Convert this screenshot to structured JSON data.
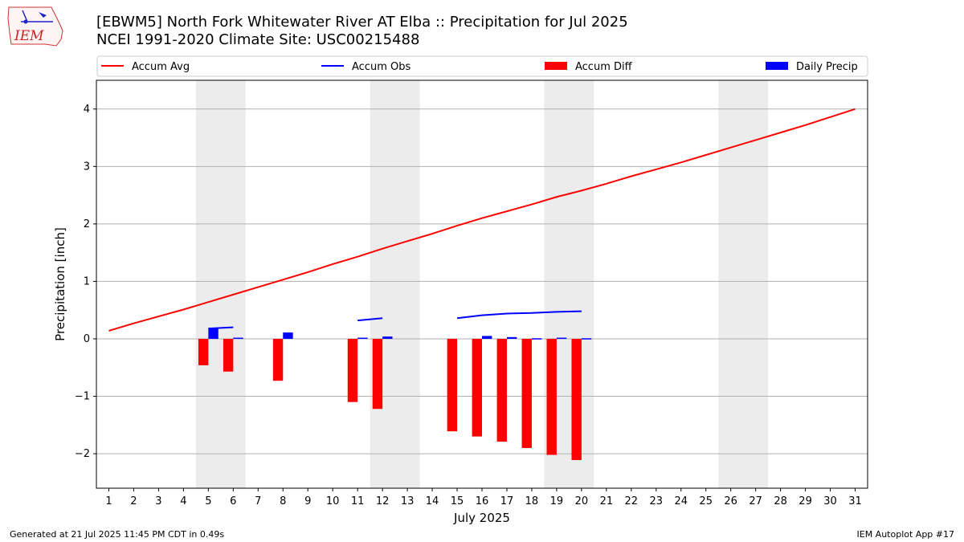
{
  "logo": {
    "text": "IEM"
  },
  "header": {
    "title": "[EBWM5] North Fork Whitewater River  AT Elba :: Precipitation for Jul 2025",
    "subtitle": "NCEI 1991-2020 Climate Site: USC00215488"
  },
  "footer": {
    "left": "Generated at 21 Jul 2025 11:45 PM CDT in 0.49s",
    "right": "IEM Autoplot App #17"
  },
  "colors": {
    "avg": "#ff0000",
    "obs": "#0000ff",
    "diff": "#ff0000",
    "precip": "#0000ff",
    "weekend": "#ececec",
    "grid": "#b0b0b0"
  },
  "chart_data": {
    "type": "bar",
    "xlabel": "July 2025",
    "ylabel": "Precipitation [inch]",
    "xlim": [
      0.5,
      31.5
    ],
    "ylim": [
      -2.6,
      4.5
    ],
    "yticks": [
      -2,
      -1,
      0,
      1,
      2,
      3,
      4
    ],
    "ytick_labels": [
      "−2",
      "−1",
      "0",
      "1",
      "2",
      "3",
      "4"
    ],
    "days": [
      1,
      2,
      3,
      4,
      5,
      6,
      7,
      8,
      9,
      10,
      11,
      12,
      13,
      14,
      15,
      16,
      17,
      18,
      19,
      20,
      21,
      22,
      23,
      24,
      25,
      26,
      27,
      28,
      29,
      30,
      31
    ],
    "grid": "y",
    "legend_position": "top",
    "shaded_weekends": [
      [
        4.5,
        6.5
      ],
      [
        11.5,
        13.5
      ],
      [
        18.5,
        20.5
      ],
      [
        25.5,
        27.5
      ]
    ],
    "legend": [
      "Accum Avg",
      "Accum Obs",
      "Accum Diff",
      "Daily Precip"
    ],
    "accum_avg": {
      "name": "Accum Avg",
      "x": [
        1,
        2,
        3,
        4,
        5,
        6,
        7,
        8,
        9,
        10,
        11,
        12,
        13,
        14,
        15,
        16,
        17,
        18,
        19,
        20,
        21,
        22,
        23,
        24,
        25,
        26,
        27,
        28,
        29,
        30,
        31
      ],
      "y": [
        0.14,
        0.27,
        0.39,
        0.51,
        0.64,
        0.77,
        0.9,
        1.03,
        1.16,
        1.3,
        1.43,
        1.57,
        1.7,
        1.83,
        1.97,
        2.1,
        2.22,
        2.34,
        2.47,
        2.58,
        2.7,
        2.83,
        2.95,
        3.07,
        3.2,
        3.33,
        3.46,
        3.59,
        3.72,
        3.86,
        4.0
      ]
    },
    "accum_obs": {
      "name": "Accum Obs",
      "segments": [
        {
          "x": [
            5,
            6
          ],
          "y": [
            0.18,
            0.2
          ]
        },
        {
          "x": [
            11,
            12
          ],
          "y": [
            0.32,
            0.36
          ]
        },
        {
          "x": [
            15,
            16,
            17,
            18,
            19,
            20
          ],
          "y": [
            0.36,
            0.41,
            0.44,
            0.45,
            0.47,
            0.48
          ]
        }
      ]
    },
    "accum_diff": {
      "name": "Accum Diff",
      "x": [
        5,
        6,
        8,
        11,
        12,
        15,
        16,
        17,
        18,
        19,
        20
      ],
      "values": [
        -0.46,
        -0.57,
        -0.73,
        -1.1,
        -1.22,
        -1.61,
        -1.7,
        -1.79,
        -1.9,
        -2.02,
        -2.11
      ]
    },
    "daily_precip": {
      "name": "Daily Precip",
      "x": [
        5,
        6,
        8,
        11,
        12,
        16,
        17,
        18,
        19,
        20
      ],
      "values": [
        0.18,
        0.02,
        0.11,
        0.02,
        0.04,
        0.05,
        0.03,
        0.01,
        0.02,
        0.01
      ]
    }
  }
}
